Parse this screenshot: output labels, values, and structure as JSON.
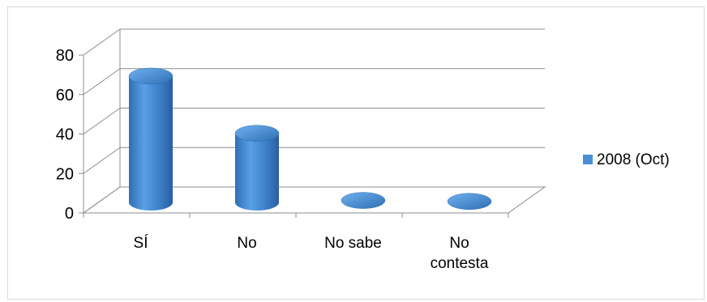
{
  "chart_data": {
    "type": "bar",
    "style": "3d-cylinder",
    "categories": [
      "SÍ",
      "No",
      "No sabe",
      "No contesta"
    ],
    "category_label_lines": [
      [
        "SÍ"
      ],
      [
        "No"
      ],
      [
        "No sabe"
      ],
      [
        "No",
        "contesta"
      ]
    ],
    "series": [
      {
        "name": "2008 (Oct)",
        "values": [
          64,
          35,
          1,
          0.5
        ],
        "color": "#4a8fd6"
      }
    ],
    "yticks": [
      "0",
      "20",
      "40",
      "60",
      "80"
    ],
    "ylim": [
      0,
      80
    ],
    "grid": true,
    "legend_position": "right",
    "title": "",
    "xlabel": "",
    "ylabel": ""
  }
}
